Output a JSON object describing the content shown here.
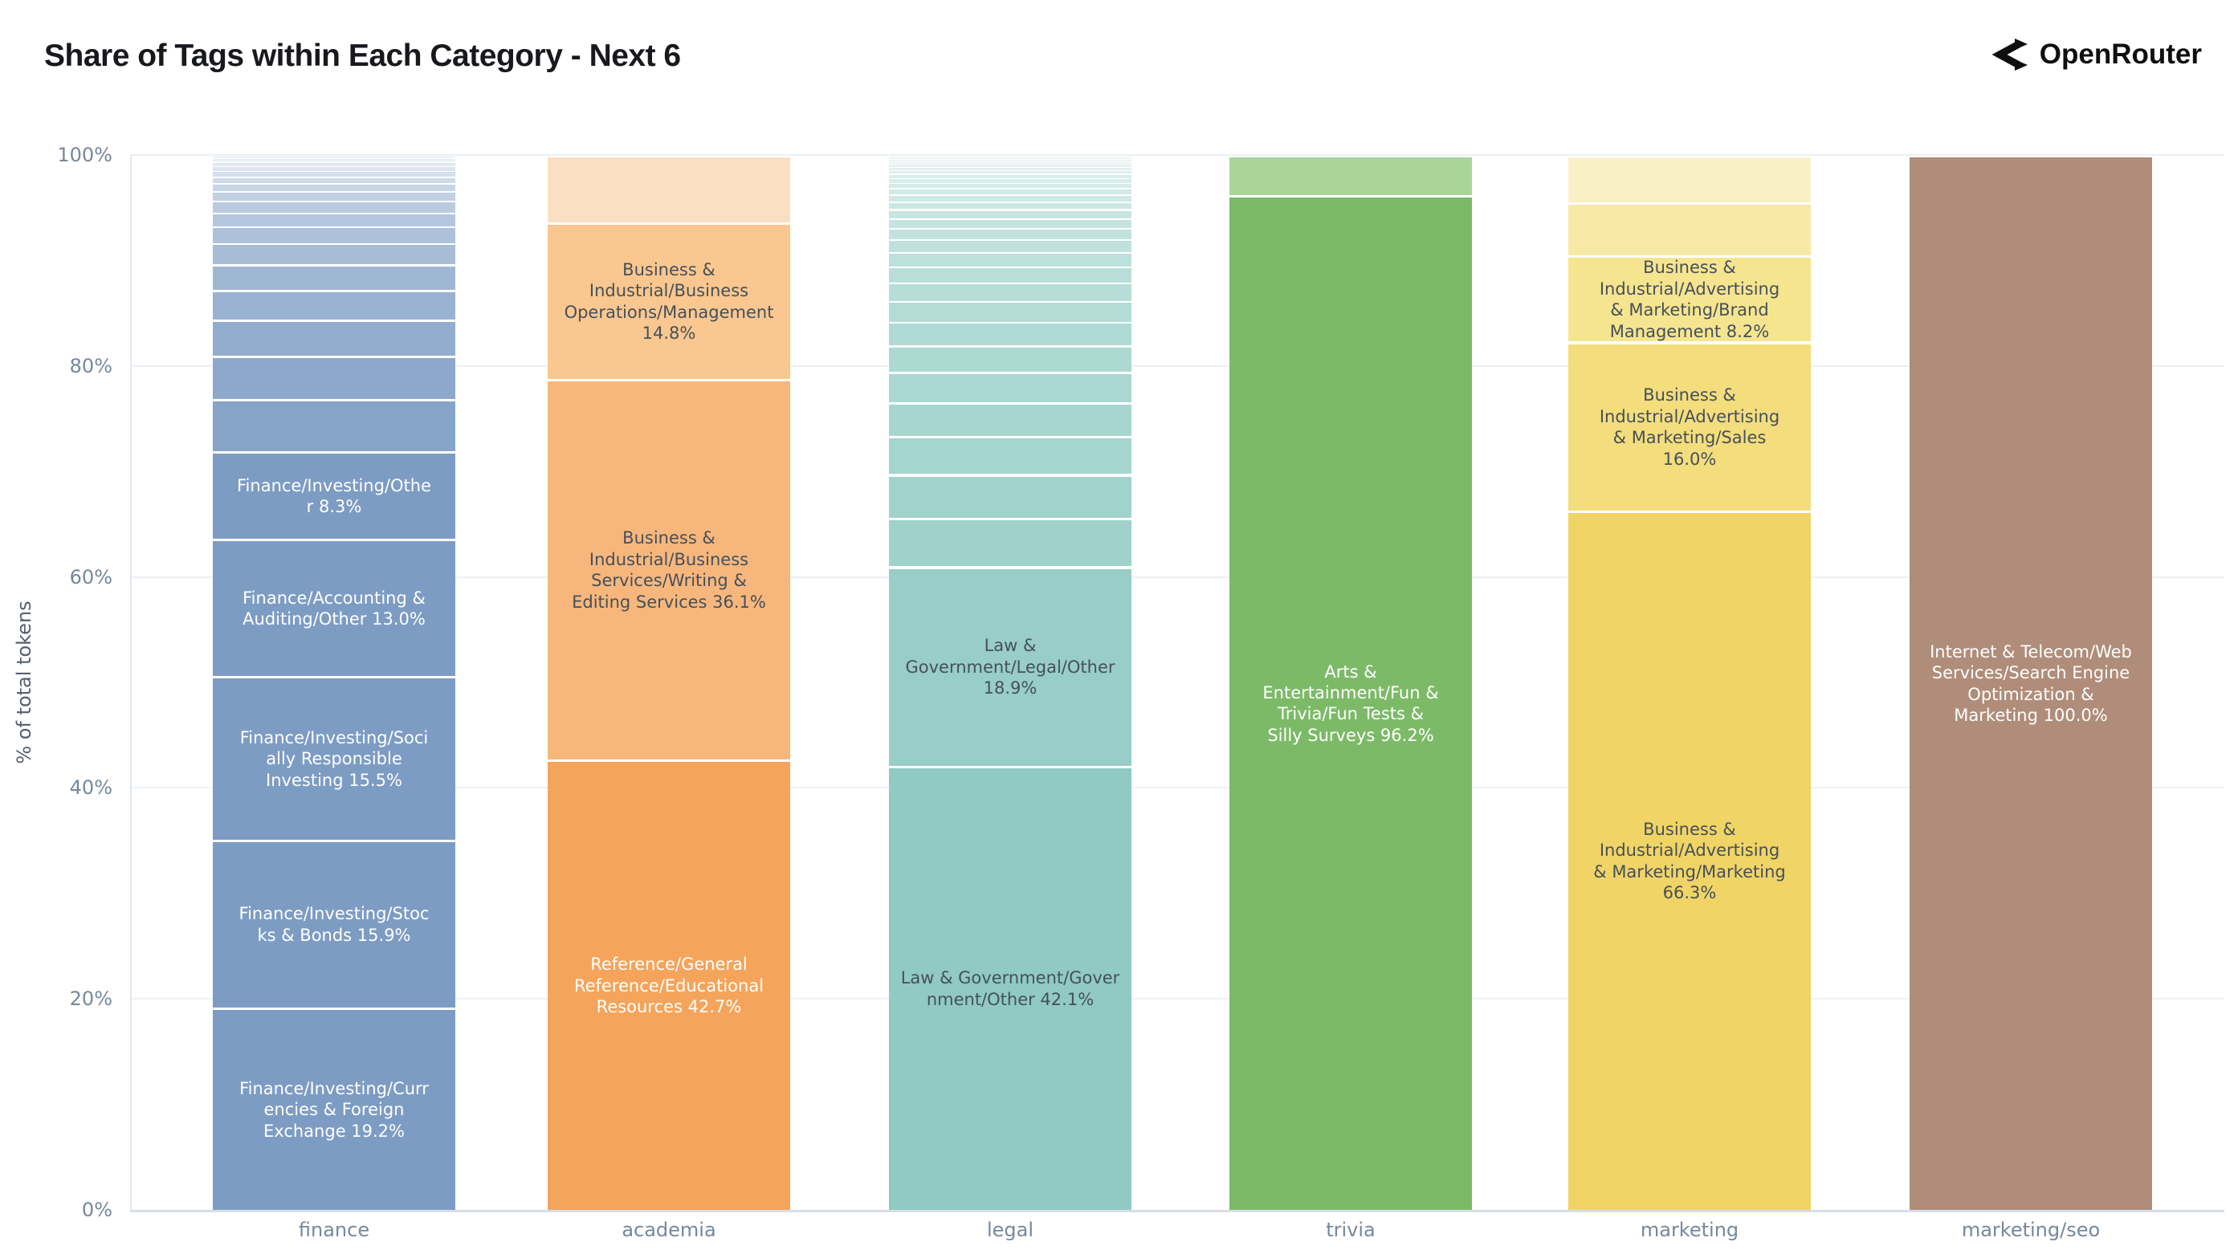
{
  "title": "Share of Tags within Each Category - Next 6",
  "brand": {
    "name": "OpenRouter",
    "icon": "openrouter-route-icon",
    "color": "#0e0f11"
  },
  "y_axis": {
    "title": "% of total tokens",
    "ticks": [
      "100%",
      "80%",
      "60%",
      "40%",
      "20%",
      "0%"
    ],
    "tick_values": [
      100,
      80,
      60,
      40,
      20,
      0
    ]
  },
  "x_axis": {
    "tick_labels": [
      "finance",
      "academia",
      "legal",
      "trivia",
      "marketing",
      "marketing/seo"
    ]
  },
  "chart_data": {
    "type": "bar",
    "stacked": true,
    "orientation": "vertical",
    "value_unit": "percent of total tokens",
    "ylim": [
      0,
      100
    ],
    "ylabel": "% of total tokens",
    "grid": true,
    "legend": "none",
    "categories": [
      "finance",
      "academia",
      "legal",
      "trivia",
      "marketing",
      "marketing/seo"
    ],
    "note": "segments listed bottom-to-top; minor_segments are thin unlabeled tag slices stacked above the labeled ones; empty label = unlabeled slice",
    "bars": [
      {
        "category": "finance",
        "label_text_color": "#ffffff",
        "segments": [
          {
            "value": 19.2,
            "label": "Finance/Investing/Curr\nencies & Foreign\nExchange 19.2%",
            "color": "#7D9CC3"
          },
          {
            "value": 15.9,
            "label": "Finance/Investing/Stoc\nks & Bonds 15.9%",
            "color": "#7D9CC3"
          },
          {
            "value": 15.5,
            "label": "Finance/Investing/Soci\nally Responsible\nInvesting 15.5%",
            "color": "#7D9CC3"
          },
          {
            "value": 13.0,
            "label": "Finance/Accounting &\nAuditing/Other 13.0%",
            "color": "#7D9CC3"
          },
          {
            "value": 8.3,
            "label": "Finance/Investing/Othe\nr 8.3%",
            "color": "#7D9CC3"
          }
        ],
        "minor_segments": {
          "values": [
            4.98,
            4.11,
            3.42,
            2.84,
            2.38,
            1.97,
            1.62,
            1.33,
            1.1,
            0.93,
            0.75,
            0.64,
            0.52,
            0.46,
            0.41,
            0.35,
            0.29
          ],
          "color_from": "#86A3C8",
          "color_to": "#EEF3F8"
        }
      },
      {
        "category": "academia",
        "label_text_color": "#45505B",
        "segments": [
          {
            "value": 42.7,
            "label": "Reference/General\nReference/Educational\nResources 42.7%",
            "color": "#F5A45B",
            "label_color": "#ffffff"
          },
          {
            "value": 36.1,
            "label": "Business &\nIndustrial/Business\nServices/Writing &\nEditing Services 36.1%",
            "color": "#F7B77C"
          },
          {
            "value": 14.8,
            "label": "Business &\nIndustrial/Business\nOperations/Management\n14.8%",
            "color": "#F9C78F"
          },
          {
            "value": 6.4,
            "label": "",
            "color": "#FBDFC3"
          }
        ]
      },
      {
        "category": "legal",
        "label_text_color": "#45505B",
        "segments": [
          {
            "value": 42.1,
            "label": "Law & Government/Gover\nnment/Other 42.1%",
            "color": "#90CAC3"
          },
          {
            "value": 18.9,
            "label": "Law &\nGovernment/Legal/Other\n18.9%",
            "color": "#98CEC7"
          }
        ],
        "minor_segments": {
          "values": [
            4.65,
            4.12,
            3.64,
            3.22,
            2.85,
            2.52,
            2.23,
            1.98,
            1.75,
            1.55,
            1.37,
            1.21,
            1.07,
            0.95,
            0.84,
            0.74,
            0.66,
            0.58,
            0.52,
            0.46,
            0.4,
            0.36,
            0.32,
            0.28,
            0.25,
            0.22,
            0.19,
            0.17
          ],
          "color_from": "#9ED2CB",
          "color_to": "#F0F7F6"
        }
      },
      {
        "category": "trivia",
        "label_text_color": "#ffffff",
        "segments": [
          {
            "value": 96.2,
            "label": "Arts &\nEntertainment/Fun &\nTrivia/Fun Tests &\nSilly Surveys 96.2%",
            "color": "#7CBA68"
          },
          {
            "value": 3.8,
            "label": "",
            "color": "#A9D59A"
          }
        ]
      },
      {
        "category": "marketing",
        "label_text_color": "#45505B",
        "segments": [
          {
            "value": 66.3,
            "label": "Business &\nIndustrial/Advertising\n& Marketing/Marketing\n66.3%",
            "color": "#F1D466"
          },
          {
            "value": 16.0,
            "label": "Business &\nIndustrial/Advertising\n& Marketing/Sales\n16.0%",
            "color": "#F4DD7C"
          },
          {
            "value": 8.2,
            "label": "Business &\nIndustrial/Advertising\n& Marketing/Brand\nManagement 8.2%",
            "color": "#F6E58F"
          },
          {
            "value": 5.0,
            "label": "",
            "color": "#F8E9A6"
          },
          {
            "value": 4.5,
            "label": "",
            "color": "#FAF0C7"
          }
        ]
      },
      {
        "category": "marketing/seo",
        "label_text_color": "#ffffff",
        "segments": [
          {
            "value": 100.0,
            "label": "Internet & Telecom/Web\nServices/Search Engine\nOptimization &\nMarketing 100.0%",
            "color": "#B08D7A"
          }
        ]
      }
    ]
  }
}
